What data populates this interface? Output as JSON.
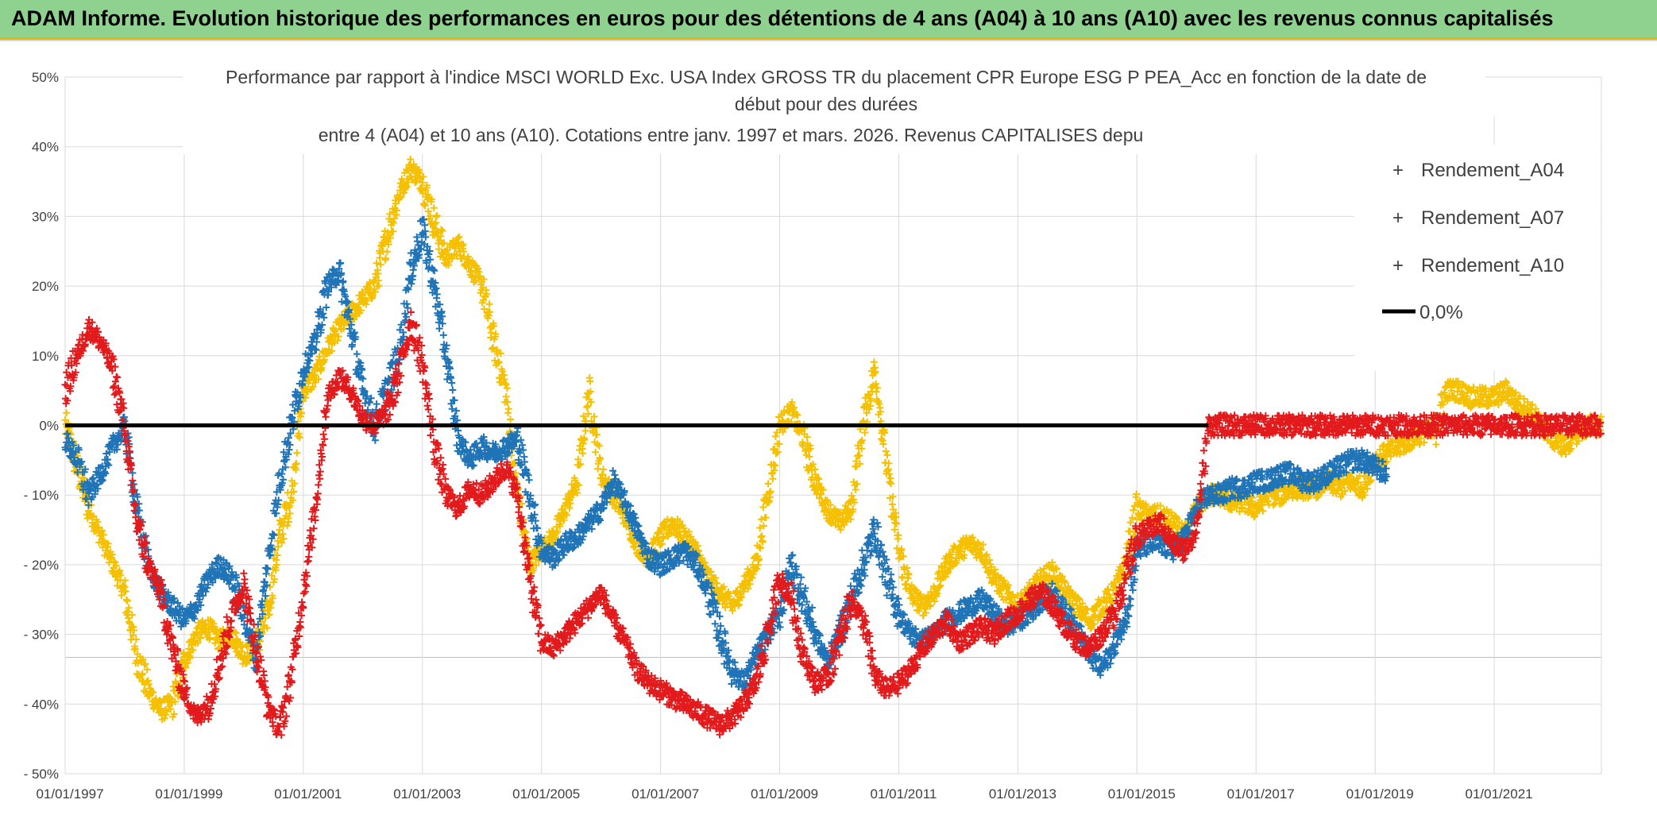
{
  "banner": {
    "title": "ADAM Informe. Evolution historique des performances en euros pour des détentions de 4 ans (A04) à 10 ans (A10) avec les revenus connus capitalisés"
  },
  "chart_data": {
    "type": "scatter",
    "title_lines": [
      "Performance par rapport à l'indice MSCI WORLD Exc. USA Index GROSS TR  du placement CPR Europe ESG P PEA_Acc en fonction de la date de",
      "début pour des durées",
      "entre 4 (A04) et 10 ans (A10). Cotations entre janv. 1997 et mars. 2026. Revenus CAPITALISES depu"
    ],
    "ylim": [
      -50,
      50
    ],
    "y_ticks": [
      50,
      40,
      30,
      20,
      10,
      0,
      -10,
      -20,
      -30,
      -40,
      -50
    ],
    "y_tick_labels": [
      "50%",
      "40%",
      "30%",
      "20%",
      "10%",
      "0%",
      "- 10%",
      "- 20%",
      "- 30%",
      "- 40%",
      "- 50%"
    ],
    "xlim": [
      1997.0,
      2022.8
    ],
    "x_ticks": [
      1997,
      1999,
      2001,
      2003,
      2005,
      2007,
      2009,
      2011,
      2013,
      2015,
      2017,
      2019,
      2021
    ],
    "x_tick_labels": [
      "01/01/1997",
      "01/01/1999",
      "01/01/2001",
      "01/01/2003",
      "01/01/2005",
      "01/01/2007",
      "01/01/2009",
      "01/01/2011",
      "01/01/2013",
      "01/01/2015",
      "01/01/2017",
      "01/01/2019",
      "01/01/2021"
    ],
    "xlabel": "",
    "ylabel": "",
    "grid": true,
    "legend_position": "top-right",
    "series": [
      {
        "name": "Rendement_A04",
        "color": "#f5c000",
        "marker": "+",
        "x": [
          1997.0,
          1997.2,
          1997.4,
          1997.6,
          1997.8,
          1998.0,
          1998.2,
          1998.4,
          1998.6,
          1998.8,
          1999.0,
          1999.2,
          1999.4,
          1999.6,
          1999.8,
          2000.0,
          2000.2,
          2000.4,
          2000.6,
          2000.8,
          2001.0,
          2001.2,
          2001.4,
          2001.6,
          2001.8,
          2002.0,
          2002.2,
          2002.4,
          2002.6,
          2002.8,
          2003.0,
          2003.2,
          2003.4,
          2003.6,
          2003.8,
          2004.0,
          2004.2,
          2004.4,
          2004.6,
          2004.8,
          2005.0,
          2005.2,
          2005.4,
          2005.6,
          2005.8,
          2006.0,
          2006.2,
          2006.4,
          2006.6,
          2006.8,
          2007.0,
          2007.2,
          2007.4,
          2007.6,
          2007.8,
          2008.0,
          2008.2,
          2008.4,
          2008.6,
          2008.8,
          2009.0,
          2009.2,
          2009.4,
          2009.6,
          2009.8,
          2010.0,
          2010.2,
          2010.4,
          2010.6,
          2010.8,
          2011.0,
          2011.2,
          2011.4,
          2011.6,
          2011.8,
          2012.0,
          2012.2,
          2012.4,
          2012.6,
          2012.8,
          2013.0,
          2013.2,
          2013.4,
          2013.6,
          2013.8,
          2014.0,
          2014.2,
          2014.4,
          2014.6,
          2014.8,
          2015.0,
          2015.2,
          2015.4,
          2015.6,
          2015.8,
          2016.0,
          2016.2,
          2016.4,
          2016.6,
          2016.8,
          2017.0,
          2017.2,
          2017.4,
          2017.6,
          2017.8,
          2018.0,
          2018.2,
          2018.4,
          2018.6,
          2018.8,
          2019.0,
          2019.2,
          2019.4,
          2019.6,
          2019.8,
          2020.0,
          2020.2,
          2020.4,
          2020.6,
          2020.8,
          2021.0,
          2021.2,
          2021.4,
          2021.6,
          2021.8,
          2022.0,
          2022.2,
          2022.4,
          2022.6,
          2022.8
        ],
        "y": [
          0,
          -6,
          -12,
          -16,
          -20,
          -24,
          -33,
          -38,
          -41,
          -40,
          -34,
          -30,
          -29,
          -31,
          -30,
          -33,
          -32,
          -27,
          -16,
          -10,
          5,
          7,
          11,
          14,
          16,
          18,
          20,
          27,
          33,
          37,
          35,
          29,
          24,
          26,
          23,
          20,
          12,
          5,
          -10,
          -20,
          -18,
          -16,
          -12,
          -8,
          5,
          -7,
          -10,
          -13,
          -17,
          -19,
          -16,
          -14,
          -16,
          -18,
          -22,
          -24,
          -26,
          -23,
          -20,
          -10,
          0,
          2,
          -2,
          -8,
          -12,
          -14,
          -12,
          0,
          8,
          -6,
          -18,
          -24,
          -26,
          -24,
          -20,
          -18,
          -17,
          -18,
          -22,
          -24,
          -26,
          -24,
          -22,
          -21,
          -24,
          -26,
          -28,
          -26,
          -24,
          -20,
          -12,
          -13,
          -13,
          -14,
          -16,
          -12,
          -10,
          -10,
          -11,
          -11,
          -12,
          -10,
          -10,
          -9,
          -9,
          -9,
          -8,
          -9,
          -8,
          -9,
          -5,
          -4,
          -3,
          -2,
          -1,
          -1,
          5,
          5,
          4,
          4,
          4,
          5,
          3,
          2,
          0,
          -2,
          -3,
          -1,
          0,
          0
        ]
      },
      {
        "name": "Rendement_A07",
        "color": "#1f73b7",
        "marker": "+",
        "x": [
          1997.0,
          1997.2,
          1997.4,
          1997.6,
          1997.8,
          1998.0,
          1998.2,
          1998.4,
          1998.6,
          1998.8,
          1999.0,
          1999.2,
          1999.4,
          1999.6,
          1999.8,
          2000.0,
          2000.2,
          2000.4,
          2000.6,
          2000.8,
          2001.0,
          2001.2,
          2001.4,
          2001.6,
          2001.8,
          2002.0,
          2002.2,
          2002.4,
          2002.6,
          2002.8,
          2003.0,
          2003.2,
          2003.4,
          2003.6,
          2003.8,
          2004.0,
          2004.2,
          2004.4,
          2004.6,
          2004.8,
          2005.0,
          2005.2,
          2005.4,
          2005.6,
          2005.8,
          2006.0,
          2006.2,
          2006.4,
          2006.6,
          2006.8,
          2007.0,
          2007.2,
          2007.4,
          2007.6,
          2007.8,
          2008.0,
          2008.2,
          2008.4,
          2008.6,
          2008.8,
          2009.0,
          2009.2,
          2009.4,
          2009.6,
          2009.8,
          2010.0,
          2010.2,
          2010.4,
          2010.6,
          2010.8,
          2011.0,
          2011.2,
          2011.4,
          2011.6,
          2011.8,
          2012.0,
          2012.2,
          2012.4,
          2012.6,
          2012.8,
          2013.0,
          2013.2,
          2013.4,
          2013.6,
          2013.8,
          2014.0,
          2014.2,
          2014.4,
          2014.6,
          2014.8,
          2015.0,
          2015.2,
          2015.4,
          2015.6,
          2015.8,
          2016.0,
          2016.2,
          2016.4,
          2016.6,
          2016.8,
          2017.0,
          2017.2,
          2017.4,
          2017.6,
          2017.8,
          2018.0,
          2018.2,
          2018.4,
          2018.6,
          2018.8,
          2019.0,
          2019.2
        ],
        "y": [
          -2,
          -5,
          -10,
          -7,
          -3,
          0,
          -12,
          -20,
          -24,
          -26,
          -28,
          -26,
          -22,
          -20,
          -22,
          -27,
          -33,
          -20,
          -8,
          0,
          8,
          12,
          20,
          22,
          14,
          5,
          0,
          5,
          10,
          22,
          28,
          20,
          10,
          -2,
          -5,
          -3,
          -4,
          -3,
          -2,
          -10,
          -18,
          -19,
          -17,
          -16,
          -14,
          -12,
          -8,
          -11,
          -15,
          -19,
          -20,
          -19,
          -18,
          -20,
          -24,
          -30,
          -35,
          -37,
          -33,
          -30,
          -27,
          -20,
          -25,
          -30,
          -34,
          -30,
          -25,
          -20,
          -15,
          -22,
          -27,
          -30,
          -31,
          -30,
          -28,
          -27,
          -26,
          -25,
          -27,
          -29,
          -28,
          -27,
          -25,
          -24,
          -27,
          -29,
          -33,
          -35,
          -32,
          -28,
          -18,
          -17,
          -17,
          -18,
          -16,
          -12,
          -10,
          -10,
          -9,
          -9,
          -8,
          -8,
          -7,
          -7,
          -8,
          -8,
          -7,
          -6,
          -5,
          -5,
          -6,
          -7
        ]
      },
      {
        "name": "Rendement_A10",
        "color": "#e31a1c",
        "marker": "+",
        "x": [
          1997.0,
          1997.2,
          1997.4,
          1997.6,
          1997.8,
          1998.0,
          1998.2,
          1998.4,
          1998.6,
          1998.8,
          1999.0,
          1999.2,
          1999.4,
          1999.6,
          1999.8,
          2000.0,
          2000.2,
          2000.4,
          2000.6,
          2000.8,
          2001.0,
          2001.2,
          2001.4,
          2001.6,
          2001.8,
          2002.0,
          2002.2,
          2002.4,
          2002.6,
          2002.8,
          2003.0,
          2003.2,
          2003.4,
          2003.6,
          2003.8,
          2004.0,
          2004.2,
          2004.4,
          2004.6,
          2004.8,
          2005.0,
          2005.2,
          2005.4,
          2005.6,
          2005.8,
          2006.0,
          2006.2,
          2006.4,
          2006.6,
          2006.8,
          2007.0,
          2007.2,
          2007.4,
          2007.6,
          2007.8,
          2008.0,
          2008.2,
          2008.4,
          2008.6,
          2008.8,
          2009.0,
          2009.2,
          2009.4,
          2009.6,
          2009.8,
          2010.0,
          2010.2,
          2010.4,
          2010.6,
          2010.8,
          2011.0,
          2011.2,
          2011.4,
          2011.6,
          2011.8,
          2012.0,
          2012.2,
          2012.4,
          2012.6,
          2012.8,
          2013.0,
          2013.2,
          2013.4,
          2013.6,
          2013.8,
          2014.0,
          2014.2,
          2014.4,
          2014.6,
          2014.8,
          2015.0,
          2015.2,
          2015.4,
          2015.6,
          2015.8,
          2016.0,
          2016.2,
          2016.4,
          2016.6,
          2016.8,
          2017.0,
          2017.2,
          2017.4,
          2017.6,
          2017.8,
          2018.0,
          2018.2,
          2018.4,
          2018.6,
          2018.8,
          2019.0,
          2019.2,
          2019.4,
          2019.6,
          2019.8,
          2020.0,
          2020.2,
          2020.4,
          2020.6,
          2020.8,
          2021.0,
          2021.2,
          2021.4,
          2021.6,
          2021.8,
          2022.0,
          2022.2,
          2022.4,
          2022.6,
          2022.8
        ],
        "y": [
          5,
          10,
          14,
          12,
          8,
          0,
          -14,
          -20,
          -24,
          -32,
          -38,
          -42,
          -40,
          -34,
          -27,
          -23,
          -32,
          -40,
          -44,
          -36,
          -24,
          -12,
          4,
          7,
          5,
          1,
          0,
          2,
          7,
          15,
          9,
          -3,
          -10,
          -12,
          -9,
          -10,
          -8,
          -6,
          -10,
          -22,
          -31,
          -32,
          -30,
          -28,
          -26,
          -24,
          -28,
          -31,
          -35,
          -37,
          -38,
          -39,
          -40,
          -41,
          -42,
          -43,
          -42,
          -40,
          -37,
          -30,
          -22,
          -25,
          -33,
          -37,
          -36,
          -31,
          -25,
          -28,
          -36,
          -38,
          -37,
          -35,
          -32,
          -30,
          -28,
          -31,
          -30,
          -29,
          -30,
          -28,
          -27,
          -25,
          -24,
          -26,
          -29,
          -31,
          -32,
          -30,
          -27,
          -22,
          -16,
          -15,
          -14,
          -17,
          -18,
          -15,
          0,
          0,
          0,
          0,
          0,
          0,
          0,
          0,
          0,
          0,
          0,
          0,
          0,
          0,
          0,
          0,
          0,
          0,
          0,
          0,
          0,
          0,
          0,
          0,
          0,
          0,
          0,
          0,
          0,
          0,
          0,
          0,
          0,
          0
        ]
      }
    ],
    "reference_line": {
      "name": "0,0%",
      "value": 0,
      "color": "#000000"
    }
  }
}
